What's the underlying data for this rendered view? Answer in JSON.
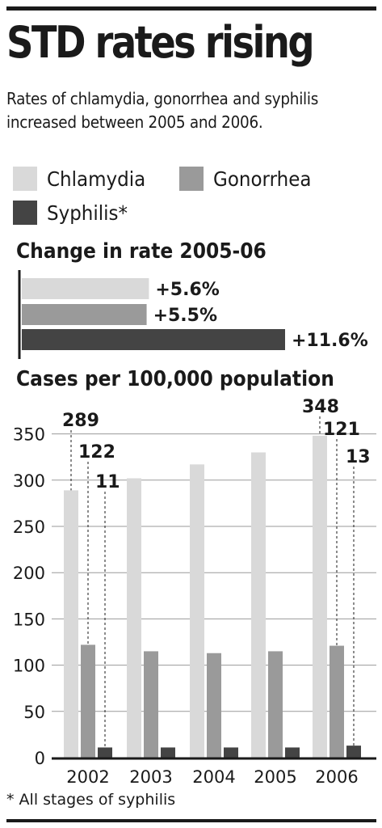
{
  "header": {
    "title": "STD rates rising",
    "subtitle": "Rates of chlamydia, gonorrhea and syphilis increased between 2005 and 2006."
  },
  "legend": [
    {
      "label": "Chlamydia",
      "color": "#d9d9d9"
    },
    {
      "label": "Gonorrhea",
      "color": "#9a9a9a"
    },
    {
      "label": "Syphilis*",
      "color": "#444444"
    }
  ],
  "footnote": "* All stages of syphilis",
  "chart_data": [
    {
      "type": "bar",
      "orientation": "horizontal",
      "title": "Change in rate 2005-06",
      "categories": [
        "Chlamydia",
        "Gonorrhea",
        "Syphilis"
      ],
      "values": [
        5.6,
        5.5,
        11.6
      ],
      "labels": [
        "+5.6%",
        "+5.5%",
        "+11.6%"
      ],
      "colors": [
        "#d9d9d9",
        "#9a9a9a",
        "#444444"
      ]
    },
    {
      "type": "bar",
      "title": "Cases per 100,000 population",
      "categories": [
        "2002",
        "2003",
        "2004",
        "2005",
        "2006"
      ],
      "series": [
        {
          "name": "Chlamydia",
          "values": [
            289,
            302,
            317,
            330,
            348
          ],
          "color": "#d9d9d9"
        },
        {
          "name": "Gonorrhea",
          "values": [
            122,
            115,
            113,
            115,
            121
          ],
          "color": "#9a9a9a"
        },
        {
          "name": "Syphilis*",
          "values": [
            11,
            11,
            11,
            11,
            13
          ],
          "color": "#444444"
        }
      ],
      "ylim": [
        0,
        350
      ],
      "yticks": [
        0,
        50,
        100,
        150,
        200,
        250,
        300,
        350
      ],
      "grid": true,
      "annotations": [
        {
          "category": "2002",
          "series": "Chlamydia",
          "text": "289"
        },
        {
          "category": "2002",
          "series": "Gonorrhea",
          "text": "122"
        },
        {
          "category": "2002",
          "series": "Syphilis*",
          "text": "11"
        },
        {
          "category": "2006",
          "series": "Chlamydia",
          "text": "348"
        },
        {
          "category": "2006",
          "series": "Gonorrhea",
          "text": "121"
        },
        {
          "category": "2006",
          "series": "Syphilis*",
          "text": "13"
        }
      ]
    }
  ]
}
